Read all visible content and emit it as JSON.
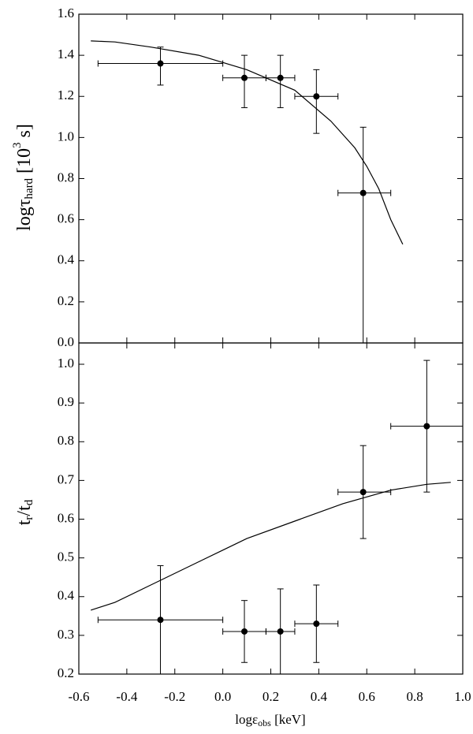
{
  "chart_data": [
    {
      "type": "scatter",
      "color": "#000000",
      "y_label": {
        "main": "logτ",
        "sub": "hard",
        "unit_open": " [10",
        "sup": "3",
        "unit_close": " s]"
      },
      "xlim": [
        -0.6,
        1.0
      ],
      "ylim": [
        0,
        1.6
      ],
      "yticks": [
        {
          "value": 0,
          "label": "0.0"
        },
        0.2,
        0.4,
        0.6,
        0.8,
        {
          "value": 1,
          "label": "1.0"
        },
        1.2,
        1.4,
        1.6
      ],
      "points": {
        "x": [
          -0.26,
          0.09,
          0.24,
          0.39,
          0.585
        ],
        "x_low": [
          -0.52,
          0.0,
          0.18,
          0.3,
          0.48
        ],
        "x_high": [
          0.0,
          0.18,
          0.3,
          0.48,
          0.7
        ],
        "y": [
          1.36,
          1.29,
          1.29,
          1.2,
          0.73
        ],
        "y_low": [
          1.255,
          1.145,
          1.145,
          1.02,
          0.0
        ],
        "y_high": [
          1.44,
          1.4,
          1.4,
          1.33,
          1.05
        ]
      },
      "curve": {
        "x": [
          -0.55,
          -0.45,
          -0.3,
          -0.1,
          0.1,
          0.3,
          0.45,
          0.55,
          0.6,
          0.65,
          0.7,
          0.75
        ],
        "y": [
          1.47,
          1.465,
          1.44,
          1.4,
          1.33,
          1.23,
          1.08,
          0.95,
          0.86,
          0.75,
          0.6,
          0.48
        ]
      }
    },
    {
      "type": "scatter",
      "color": "#000000",
      "y_label": {
        "main": "t",
        "sub": "r",
        "mid": "/t",
        "sub2": "d"
      },
      "x_label": {
        "main": "logε",
        "sub": "obs",
        "unit": " [keV]"
      },
      "xlim": [
        -0.6,
        1.0
      ],
      "xticks": [
        -0.6,
        -0.4,
        -0.2,
        {
          "value": 0,
          "label": "0.0"
        },
        0.2,
        0.4,
        0.6,
        0.8,
        {
          "value": 1,
          "label": "1.0"
        }
      ],
      "ylim": [
        0.2,
        1.055
      ],
      "yticks": [
        0.2,
        0.3,
        0.4,
        0.5,
        0.6,
        0.7,
        0.8,
        0.9,
        {
          "value": 1,
          "label": "1.0"
        }
      ],
      "points": {
        "x": [
          -0.26,
          0.09,
          0.24,
          0.39,
          0.585,
          0.85
        ],
        "x_low": [
          -0.52,
          0.0,
          0.18,
          0.3,
          0.48,
          0.7
        ],
        "x_high": [
          0.0,
          0.18,
          0.3,
          0.48,
          0.7,
          1.0
        ],
        "y": [
          0.34,
          0.31,
          0.31,
          0.33,
          0.67,
          0.84
        ],
        "y_low": [
          0.2,
          0.23,
          0.2,
          0.23,
          0.55,
          0.67
        ],
        "y_high": [
          0.48,
          0.39,
          0.42,
          0.43,
          0.79,
          1.01
        ]
      },
      "curve": {
        "x": [
          -0.55,
          -0.45,
          -0.3,
          -0.1,
          0.0,
          0.1,
          0.3,
          0.5,
          0.7,
          0.85,
          0.95
        ],
        "y": [
          0.365,
          0.385,
          0.43,
          0.49,
          0.52,
          0.55,
          0.595,
          0.64,
          0.675,
          0.69,
          0.695
        ]
      }
    }
  ]
}
